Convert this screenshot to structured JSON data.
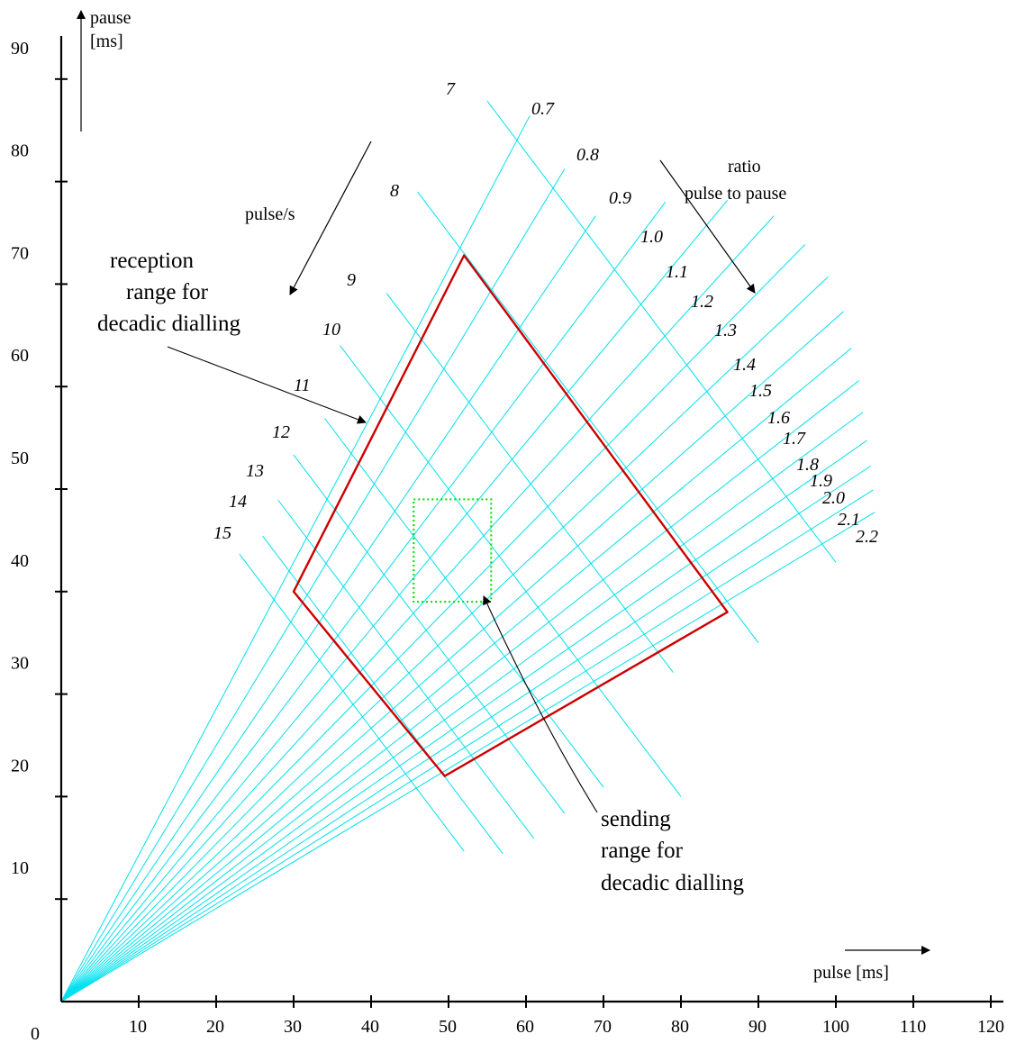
{
  "chart_data": {
    "type": "line",
    "x_axis": {
      "label": "pulse [ms]",
      "range": [
        0,
        120
      ],
      "ticks": [
        "0",
        "10",
        "20",
        "30",
        "40",
        "50",
        "60",
        "70",
        "80",
        "90",
        "100",
        "110",
        "120"
      ]
    },
    "y_axis": {
      "label_line1": "pause",
      "label_line2": "[ms]",
      "range": [
        0,
        90
      ],
      "ticks": [
        "10",
        "20",
        "30",
        "40",
        "50",
        "60",
        "70",
        "80",
        "90"
      ]
    },
    "pulse_rate_lines": {
      "label": "pulse/s",
      "values": [
        7,
        8,
        9,
        10,
        11,
        12,
        13,
        14,
        15
      ],
      "labels": [
        "7",
        "8",
        "9",
        "10",
        "11",
        "12",
        "13",
        "14",
        "15"
      ]
    },
    "ratio_lines": {
      "label_line1": "ratio",
      "label_line2": "pulse to pause",
      "values": [
        0.7,
        0.8,
        0.9,
        1.0,
        1.1,
        1.2,
        1.3,
        1.4,
        1.5,
        1.6,
        1.7,
        1.8,
        1.9,
        2.0,
        2.1,
        2.2
      ],
      "labels": [
        "0.7",
        "0.8",
        "0.9",
        "1.0",
        "1.1",
        "1.2",
        "1.3",
        "1.4",
        "1.5",
        "1.6",
        "1.7",
        "1.8",
        "1.9",
        "2.0",
        "2.1",
        "2.2"
      ]
    },
    "reception_range": {
      "label_line1": "reception",
      "label_line2": "range for",
      "label_line3": "decadic dialling",
      "color": "#cc0000",
      "points": [
        [
          52.0,
          72.8
        ],
        [
          86.0,
          38.0
        ],
        [
          49.5,
          22.0
        ],
        [
          30.0,
          40.0
        ]
      ]
    },
    "sending_range": {
      "label_line1": "sending",
      "label_line2": "range for",
      "label_line3": "decadic dialling",
      "color": "#00dd00",
      "points": [
        [
          45.5,
          49.0
        ],
        [
          55.5,
          49.0
        ],
        [
          55.5,
          39.0
        ],
        [
          45.5,
          39.0
        ]
      ]
    },
    "line_color": "#00e0ee",
    "grid": false,
    "legend": "none"
  }
}
